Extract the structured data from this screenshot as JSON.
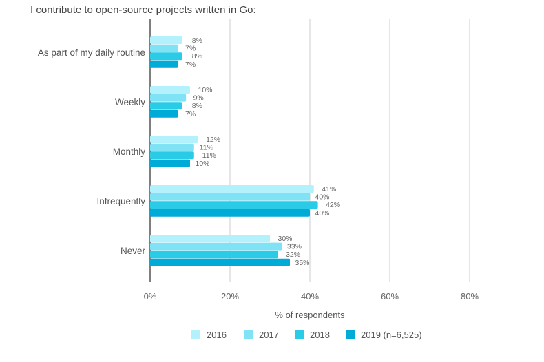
{
  "chart_data": {
    "type": "bar",
    "orientation": "horizontal",
    "title": "I contribute to open-source projects written in Go:",
    "xlabel": "% of respondents",
    "ylabel": "",
    "xlim": [
      0,
      90
    ],
    "x_ticks": [
      0,
      20,
      40,
      60,
      80
    ],
    "x_tick_labels": [
      "0%",
      "20%",
      "40%",
      "60%",
      "80%"
    ],
    "grid": true,
    "legend_position": "bottom",
    "categories": [
      "As part of my daily routine",
      "Weekly",
      "Monthly",
      "Infrequently",
      "Never"
    ],
    "series": [
      {
        "name": "2016",
        "color": "#b3f2fd",
        "values": [
          8,
          10,
          12,
          41,
          30
        ]
      },
      {
        "name": "2017",
        "color": "#80e3f5",
        "values": [
          7,
          9,
          11,
          40,
          33
        ]
      },
      {
        "name": "2018",
        "color": "#29cbe6",
        "values": [
          8,
          8,
          11,
          42,
          32
        ]
      },
      {
        "name": "2019 (n=6,525)",
        "color": "#00acd7",
        "values": [
          7,
          7,
          10,
          40,
          35
        ]
      }
    ],
    "value_suffix": "%"
  }
}
